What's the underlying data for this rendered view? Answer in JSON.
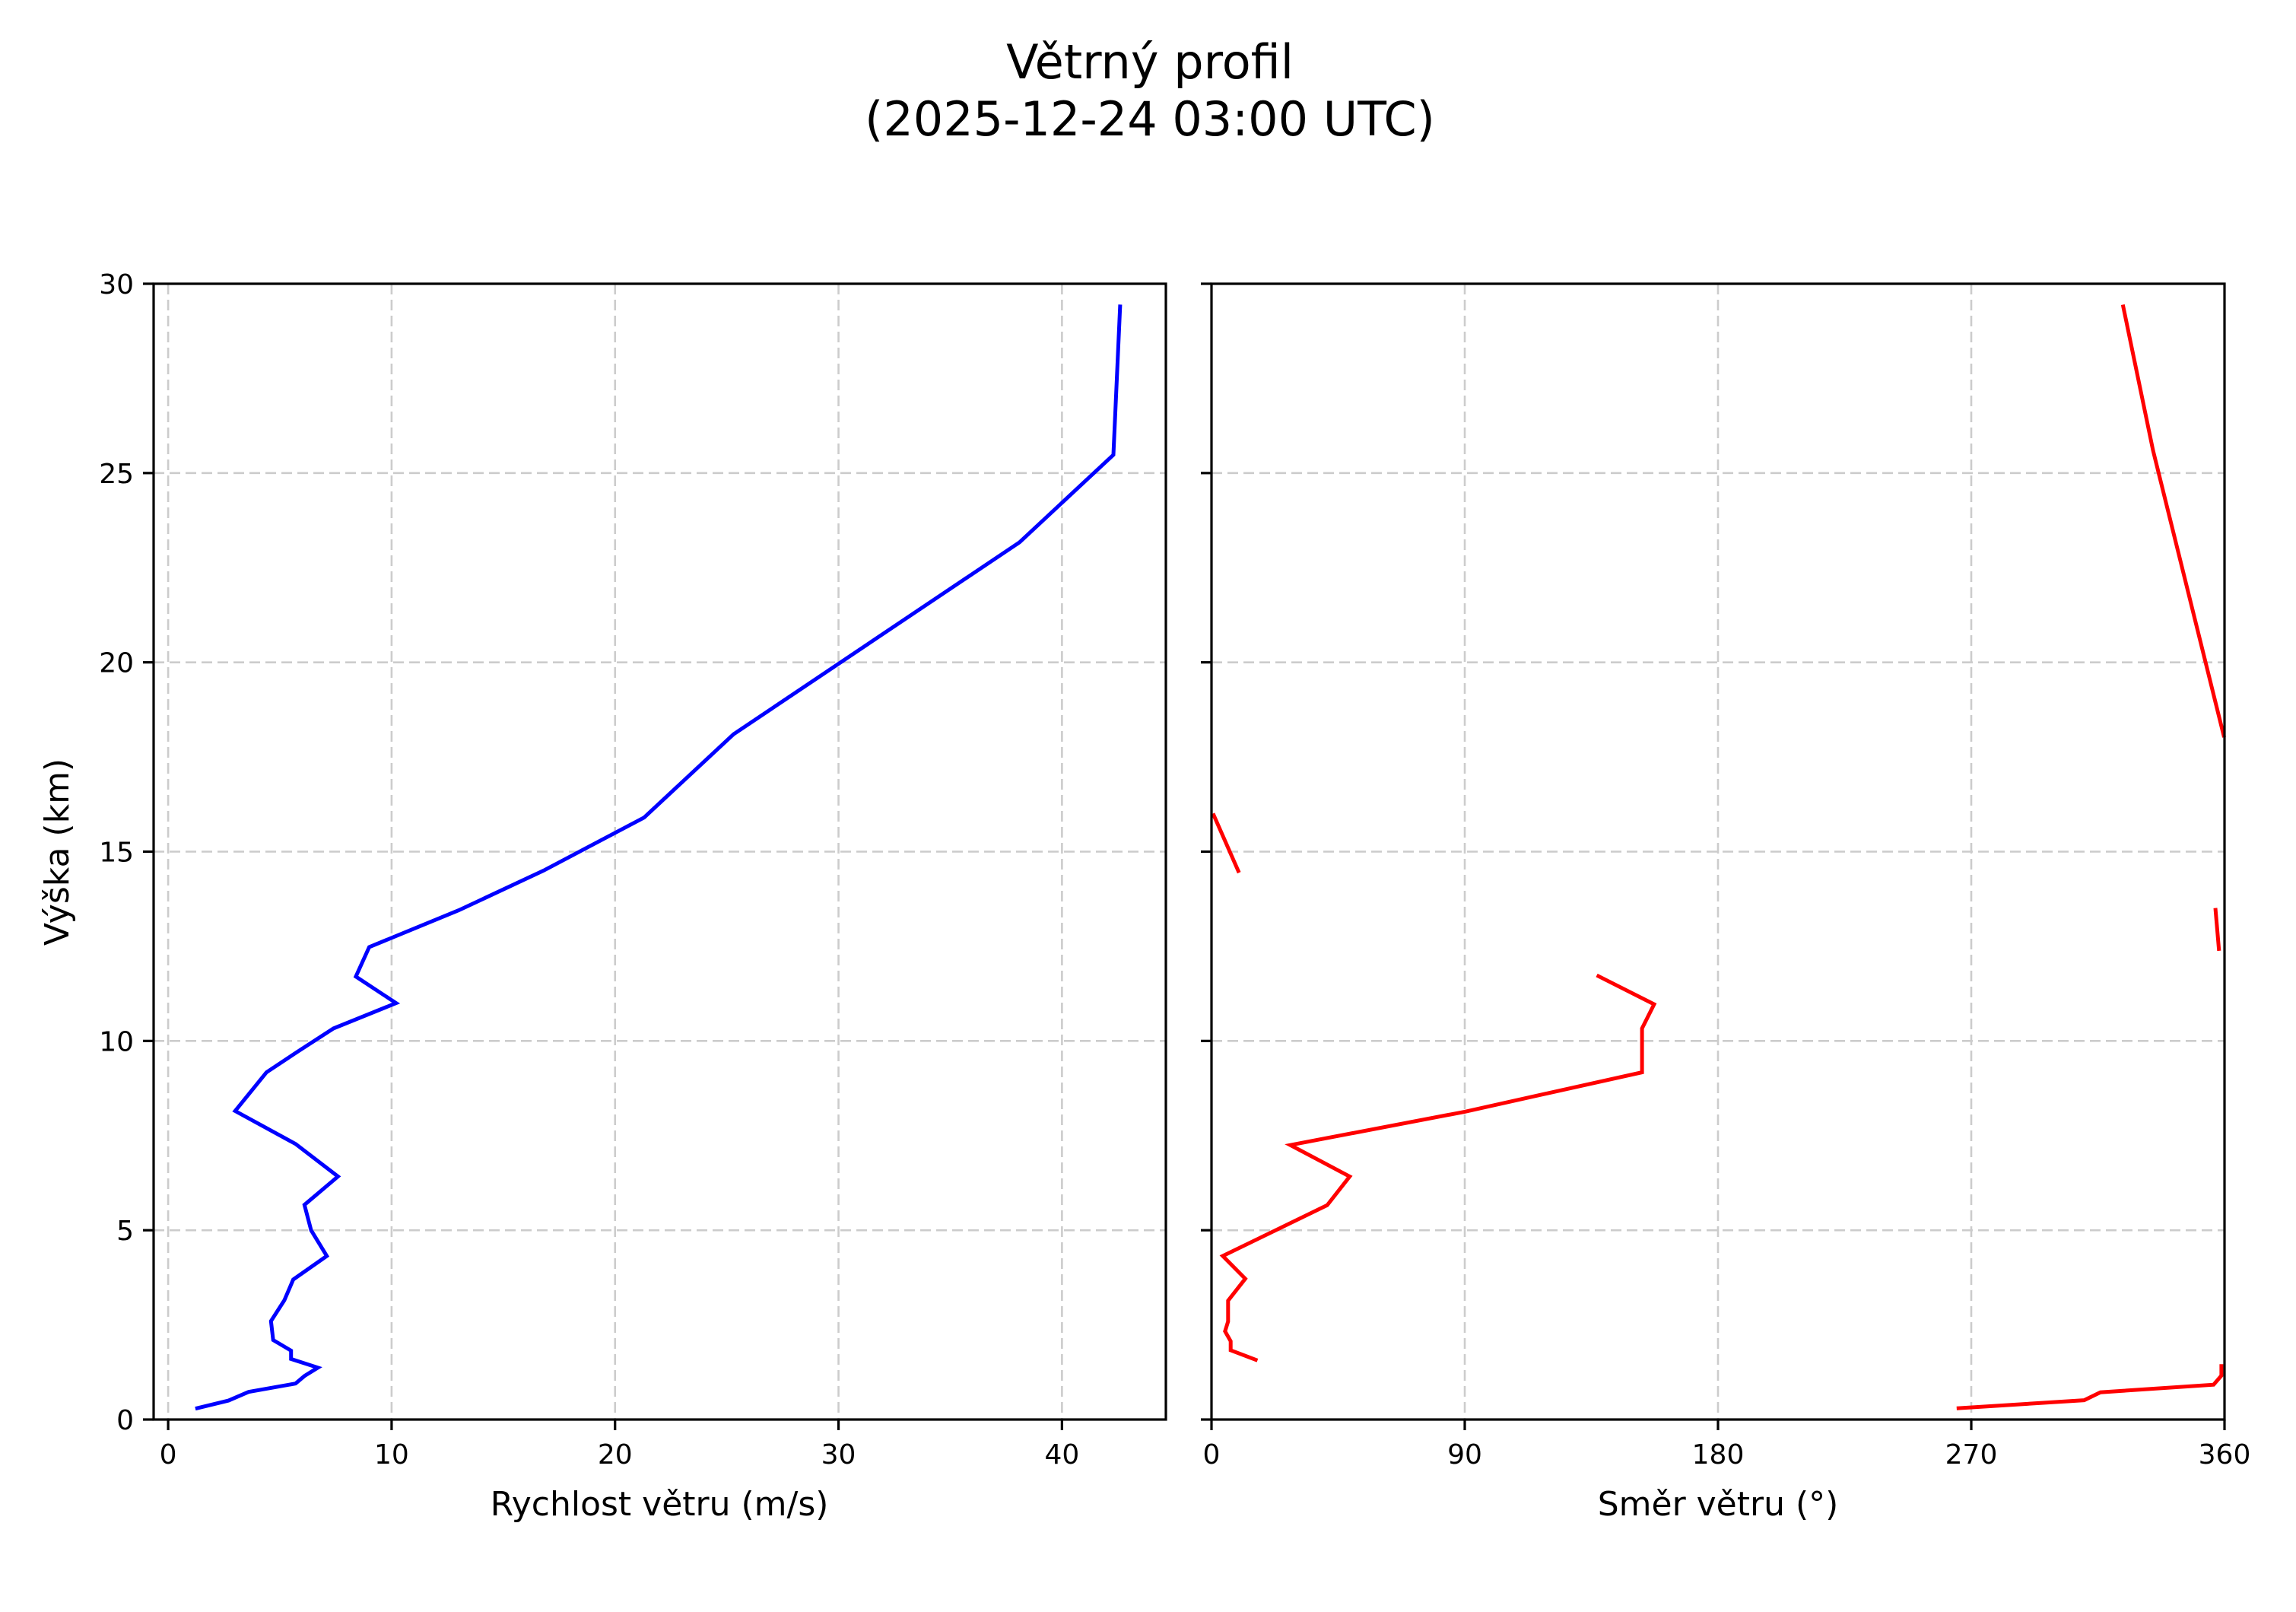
{
  "figure": {
    "title_line1": "Větrný profil",
    "title_line2": "(2025-12-24 03:00 UTC)"
  },
  "chart_data": [
    {
      "type": "line",
      "title": "Větrný profil (2025-12-24 03:00 UTC)",
      "panel": "left",
      "xlabel": "Rychlost větru (m/s)",
      "ylabel": "Výška (km)",
      "xlim": [
        -0.65,
        44.65
      ],
      "ylim": [
        0,
        30
      ],
      "xticks": [
        0,
        10,
        20,
        30,
        40
      ],
      "yticks": [
        0,
        5,
        10,
        15,
        20,
        25,
        30
      ],
      "grid": true,
      "color": "#0000ff",
      "series": [
        {
          "name": "Rychlost větru",
          "segments": [
            [
              [
                1.3,
                0.3
              ],
              [
                2.7,
                0.5
              ],
              [
                3.6,
                0.73
              ],
              [
                5.7,
                0.95
              ],
              [
                6.1,
                1.15
              ],
              [
                6.7,
                1.37
              ],
              [
                5.5,
                1.6
              ],
              [
                5.5,
                1.82
              ],
              [
                4.7,
                2.1
              ],
              [
                4.6,
                2.6
              ],
              [
                5.2,
                3.15
              ],
              [
                5.6,
                3.7
              ],
              [
                7.1,
                4.32
              ],
              [
                6.4,
                5.0
              ],
              [
                6.1,
                5.67
              ],
              [
                7.6,
                6.42
              ],
              [
                5.7,
                7.28
              ],
              [
                3.0,
                8.15
              ],
              [
                4.4,
                9.17
              ],
              [
                5.8,
                9.72
              ],
              [
                7.4,
                10.33
              ],
              [
                10.2,
                11.0
              ],
              [
                8.4,
                11.7
              ],
              [
                9.0,
                12.48
              ],
              [
                13.0,
                13.45
              ],
              [
                16.8,
                14.5
              ],
              [
                21.3,
                15.9
              ],
              [
                25.3,
                18.1
              ],
              [
                38.1,
                23.17
              ],
              [
                42.3,
                25.48
              ],
              [
                42.6,
                29.4
              ]
            ]
          ]
        }
      ]
    },
    {
      "type": "line",
      "panel": "right",
      "xlabel": "Směr větru (°)",
      "ylabel": "",
      "xlim": [
        0,
        360
      ],
      "ylim": [
        0,
        30
      ],
      "xticks": [
        0,
        90,
        180,
        270,
        360
      ],
      "yticks": [
        0,
        5,
        10,
        15,
        20,
        25,
        30
      ],
      "ytick_labels_visible": false,
      "grid": true,
      "color": "#ff0000",
      "series": [
        {
          "name": "Směr větru",
          "segments": [
            [
              [
                265.5,
                0.3
              ],
              [
                310.1,
                0.51
              ],
              [
                315.9,
                0.72
              ],
              [
                356.1,
                0.92
              ],
              [
                358.9,
                1.16
              ],
              [
                358.9,
                1.41
              ]
            ],
            [
              [
                15.7,
                1.58
              ],
              [
                6.8,
                1.83
              ],
              [
                6.8,
                2.07
              ],
              [
                4.8,
                2.33
              ],
              [
                5.9,
                2.59
              ],
              [
                5.9,
                3.14
              ],
              [
                12.0,
                3.72
              ],
              [
                4.0,
                4.32
              ],
              [
                41.1,
                5.66
              ],
              [
                49.1,
                6.42
              ],
              [
                28.0,
                7.25
              ],
              [
                90.0,
                8.13
              ],
              [
                153.0,
                9.17
              ],
              [
                153.0,
                10.33
              ],
              [
                157.3,
                10.97
              ],
              [
                137.5,
                11.71
              ]
            ],
            [
              [
                358.0,
                12.43
              ],
              [
                356.8,
                13.46
              ]
            ],
            [
              [
                9.5,
                14.49
              ],
              [
                0.8,
                15.96
              ]
            ],
            [
              [
                359.7,
                18.07
              ],
              [
                334.6,
                25.6
              ],
              [
                324.0,
                29.4
              ]
            ]
          ]
        }
      ]
    }
  ]
}
